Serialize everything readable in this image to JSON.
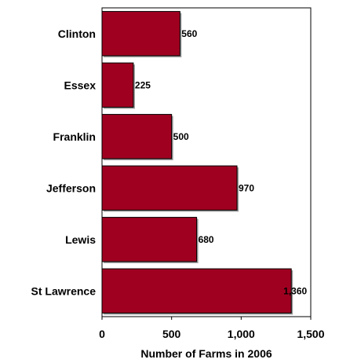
{
  "chart_data": {
    "type": "bar",
    "orientation": "horizontal",
    "categories": [
      "Clinton",
      "Essex",
      "Franklin",
      "Jefferson",
      "Lewis",
      "St Lawrence"
    ],
    "values": [
      560,
      225,
      500,
      970,
      680,
      1360
    ],
    "value_labels": [
      "560",
      "225",
      "500",
      "970",
      "680",
      "1,360"
    ],
    "xlabel": "Number of Farms in 2006",
    "ylabel": "",
    "title": "",
    "xlim": [
      0,
      1500
    ],
    "xticks": [
      0,
      500,
      1000,
      1500
    ],
    "xtick_labels": [
      "0",
      "500",
      "1,000",
      "1,500"
    ],
    "grid": false,
    "legend": "none",
    "bar_color": "#a00020",
    "bar_edge_color": "#000000"
  }
}
